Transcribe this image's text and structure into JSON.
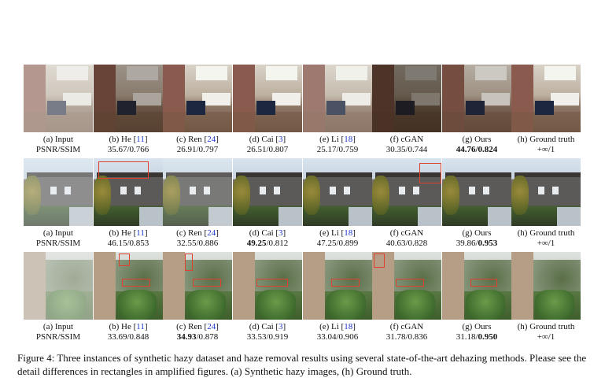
{
  "rows": [
    {
      "cells": [
        {
          "label": "(a) Input",
          "ref": "",
          "value_plain": "PSNR/SSIM",
          "psnr": "",
          "ssim": "",
          "bold_psnr": false,
          "bold_ssim": false
        },
        {
          "label": "(b) He [",
          "ref": "11",
          "psnr": "35.67",
          "ssim": "0.766",
          "bold_psnr": false,
          "bold_ssim": false
        },
        {
          "label": "(c) Ren [",
          "ref": "24",
          "psnr": "26.91",
          "ssim": "0.797",
          "bold_psnr": false,
          "bold_ssim": false
        },
        {
          "label": "(d) Cai [",
          "ref": "3",
          "psnr": "26.51",
          "ssim": "0.807",
          "bold_psnr": false,
          "bold_ssim": false
        },
        {
          "label": "(e) Li [",
          "ref": "18",
          "psnr": "25.17",
          "ssim": "0.759",
          "bold_psnr": false,
          "bold_ssim": false
        },
        {
          "label": "(f) cGAN",
          "ref": "",
          "psnr": "30.35",
          "ssim": "0.744",
          "bold_psnr": false,
          "bold_ssim": false
        },
        {
          "label": "(g) Ours",
          "ref": "",
          "psnr": "44.76",
          "ssim": "0.824",
          "bold_psnr": true,
          "bold_ssim": true
        },
        {
          "label": "(h) Ground truth",
          "ref": "",
          "value_plain": "+∞/1"
        }
      ]
    },
    {
      "cells": [
        {
          "label": "(a) Input",
          "ref": "",
          "value_plain": "PSNR/SSIM"
        },
        {
          "label": "(b) He [",
          "ref": "11",
          "psnr": "46.15",
          "ssim": "0.853",
          "bold_psnr": false,
          "bold_ssim": false
        },
        {
          "label": "(c) Ren [",
          "ref": "24",
          "psnr": "32.55",
          "ssim": "0.886",
          "bold_psnr": false,
          "bold_ssim": false
        },
        {
          "label": "(d) Cai [",
          "ref": "3",
          "psnr": "49.25",
          "ssim": "0.812",
          "bold_psnr": true,
          "bold_ssim": false
        },
        {
          "label": "(e) Li [",
          "ref": "18",
          "psnr": "47.25",
          "ssim": "0.899",
          "bold_psnr": false,
          "bold_ssim": false
        },
        {
          "label": "(f) cGAN",
          "ref": "",
          "psnr": "40.63",
          "ssim": "0.828",
          "bold_psnr": false,
          "bold_ssim": false
        },
        {
          "label": "(g) Ours",
          "ref": "",
          "psnr": "39.86",
          "ssim": "0.953",
          "bold_psnr": false,
          "bold_ssim": true
        },
        {
          "label": "(h) Ground truth",
          "ref": "",
          "value_plain": "+∞/1"
        }
      ]
    },
    {
      "cells": [
        {
          "label": "(a) Input",
          "ref": "",
          "value_plain": "PSNR/SSIM"
        },
        {
          "label": "(b) He [",
          "ref": "11",
          "psnr": "33.69",
          "ssim": "0.848",
          "bold_psnr": false,
          "bold_ssim": false
        },
        {
          "label": "(c) Ren [",
          "ref": "24",
          "psnr": "34.93",
          "ssim": "0.878",
          "bold_psnr": true,
          "bold_ssim": false
        },
        {
          "label": "(d) Cai [",
          "ref": "3",
          "psnr": "33.53",
          "ssim": "0.919",
          "bold_psnr": false,
          "bold_ssim": false
        },
        {
          "label": "(e) Li [",
          "ref": "18",
          "psnr": "33.04",
          "ssim": "0.906",
          "bold_psnr": false,
          "bold_ssim": false
        },
        {
          "label": "(f) cGAN",
          "ref": "",
          "psnr": "31.78",
          "ssim": "0.836",
          "bold_psnr": false,
          "bold_ssim": false
        },
        {
          "label": "(g) Ours",
          "ref": "",
          "psnr": "31.18",
          "ssim": "0.950",
          "bold_psnr": false,
          "bold_ssim": true
        },
        {
          "label": "(h) Ground truth",
          "ref": "",
          "value_plain": "+∞/1"
        }
      ]
    }
  ],
  "caption": "Figure 4: Three instances of synthetic hazy dataset and haze removal results using several state-of-the-art dehazing methods. Please see the detail differences in rectangles in amplified figures. (a) Synthetic hazy images, (h) Ground truth."
}
